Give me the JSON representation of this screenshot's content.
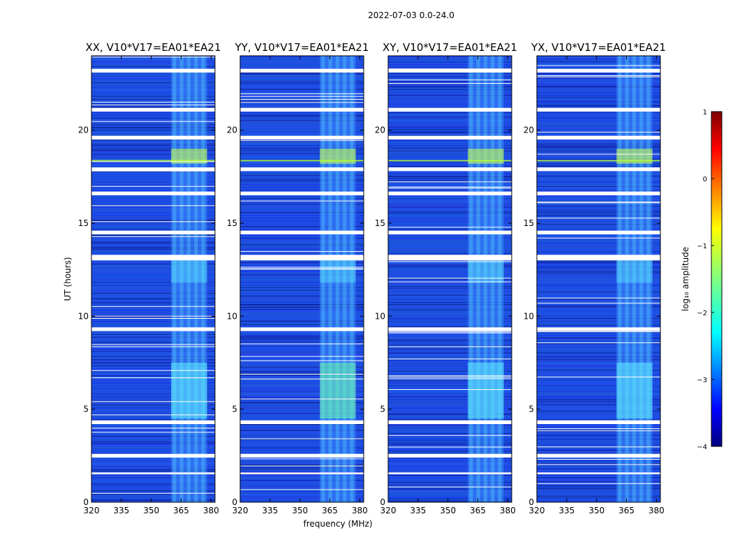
{
  "chart_data": {
    "type": "heatmap",
    "suptitle": "2022-07-03 0.0-24.0",
    "xlabel": "frequency (MHz)",
    "ylabel": "UT (hours)",
    "xlim": [
      320,
      382
    ],
    "ylim": [
      0,
      24
    ],
    "xticks": [
      320,
      335,
      350,
      365,
      380
    ],
    "yticks": [
      0,
      5,
      10,
      15,
      20
    ],
    "panels": [
      {
        "title": "XX, V10*V17=EA01*EA21",
        "pol": "XX"
      },
      {
        "title": "YY, V10*V17=EA01*EA21",
        "pol": "YY"
      },
      {
        "title": "XY, V10*V17=EA01*EA21",
        "pol": "XY"
      },
      {
        "title": "YX, V10*V17=EA01*EA21",
        "pol": "YX"
      }
    ],
    "rfi_band_mhz": [
      360,
      378
    ],
    "flagged_time_ranges_hours": [
      [
        23.1,
        23.3
      ],
      [
        21.0,
        21.2
      ],
      [
        19.5,
        19.7
      ],
      [
        17.8,
        18.0
      ],
      [
        16.5,
        16.7
      ],
      [
        14.4,
        14.6
      ],
      [
        13.0,
        13.3
      ],
      [
        9.2,
        9.4
      ],
      [
        4.2,
        4.4
      ],
      [
        2.4,
        2.6
      ],
      [
        1.5,
        1.6
      ]
    ],
    "colorbar": {
      "label": "log₁₀ amplitude",
      "range": [
        -4,
        1
      ],
      "ticks": [
        1,
        0,
        -1,
        -2,
        -3,
        -4
      ],
      "tick_labels": [
        "1",
        "0",
        "−1",
        "−2",
        "−3",
        "−4"
      ],
      "colormap": "jet"
    }
  }
}
